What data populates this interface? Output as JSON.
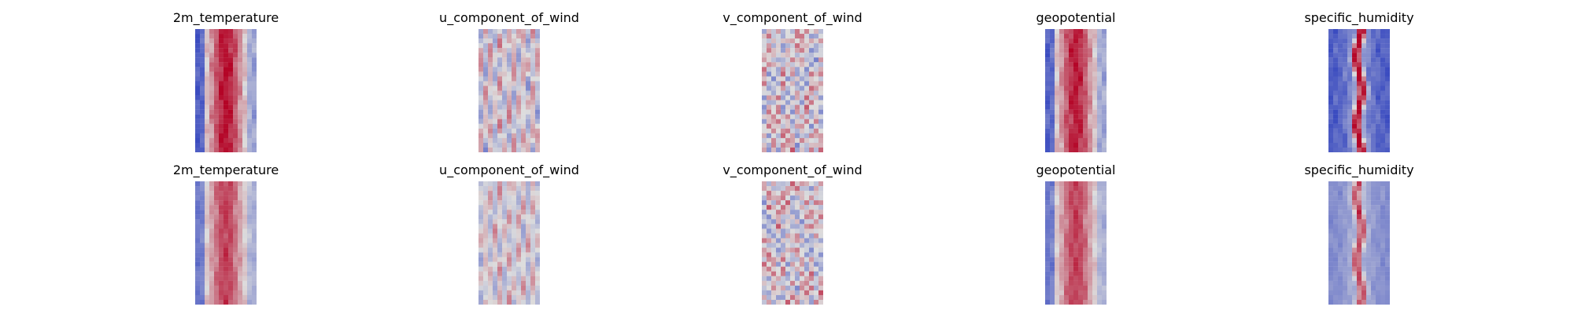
{
  "chart_data": {
    "type": "heatmap",
    "colormap": "coolwarm",
    "colormap_colors": {
      "low": "#3b4cc0",
      "mid": "#dddddd",
      "high": "#b40426"
    },
    "axes_visible": false,
    "rows": [
      {
        "panels": [
          {
            "title": "2m_temperature",
            "pattern": "warm_band",
            "intensity": 0.9
          },
          {
            "title": "u_component_of_wind",
            "pattern": "streaks",
            "intensity": 0.6
          },
          {
            "title": "v_component_of_wind",
            "pattern": "swirls",
            "intensity": 0.7
          },
          {
            "title": "geopotential",
            "pattern": "warm_band",
            "intensity": 0.85
          },
          {
            "title": "specific_humidity",
            "pattern": "cold_core",
            "intensity": 0.95
          }
        ]
      },
      {
        "panels": [
          {
            "title": "2m_temperature",
            "pattern": "warm_band",
            "intensity": 0.7
          },
          {
            "title": "u_component_of_wind",
            "pattern": "streaks",
            "intensity": 0.5
          },
          {
            "title": "v_component_of_wind",
            "pattern": "swirls",
            "intensity": 0.7
          },
          {
            "title": "geopotential",
            "pattern": "warm_band",
            "intensity": 0.7
          },
          {
            "title": "specific_humidity",
            "pattern": "cold_core",
            "intensity": 0.6
          }
        ]
      }
    ]
  }
}
